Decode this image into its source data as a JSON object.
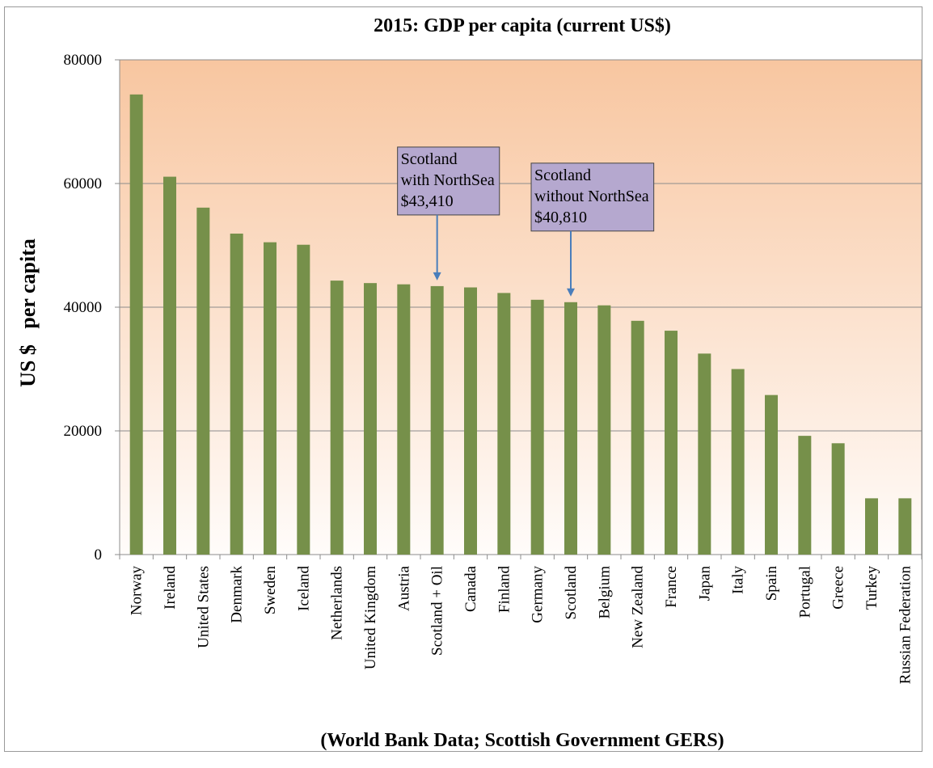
{
  "chart_data": {
    "type": "bar",
    "title": "2015: GDP per capita (current US$)",
    "ylabel": "US $   per capita",
    "footer": "(World Bank Data; Scottish Government GERS)",
    "ylim": [
      0,
      80000
    ],
    "yticks": [
      0,
      20000,
      40000,
      60000,
      80000
    ],
    "grid": true,
    "categories": [
      "Norway",
      "Ireland",
      "United States",
      "Denmark",
      "Sweden",
      "Iceland",
      "Netherlands",
      "United Kingdom",
      "Austria",
      "Scotland + Oil",
      "Canada",
      "Finland",
      "Germany",
      "Scotland",
      "Belgium",
      "New Zealand",
      "France",
      "Japan",
      "Italy",
      "Spain",
      "Portugal",
      "Greece",
      "Turkey",
      "Russian Federation"
    ],
    "values": [
      74400,
      61100,
      56100,
      51900,
      50500,
      50100,
      44300,
      43900,
      43700,
      43410,
      43200,
      42300,
      41200,
      40810,
      40300,
      37800,
      36200,
      32500,
      30000,
      25800,
      19200,
      18000,
      9100,
      9100
    ],
    "bar_color": "#76904a",
    "background_top": "#f8c6a0",
    "background_bottom": "#fffcfa",
    "annotations": [
      {
        "category": "Scotland + Oil",
        "lines": [
          "Scotland",
          "with NorthSea",
          "$43,410"
        ],
        "box_color": "#b5a8cf",
        "arrow_color": "#4a7ebb"
      },
      {
        "category": "Scotland",
        "lines": [
          "Scotland",
          "without NorthSea",
          "$40,810"
        ],
        "box_color": "#b5a8cf",
        "arrow_color": "#4a7ebb"
      }
    ]
  }
}
